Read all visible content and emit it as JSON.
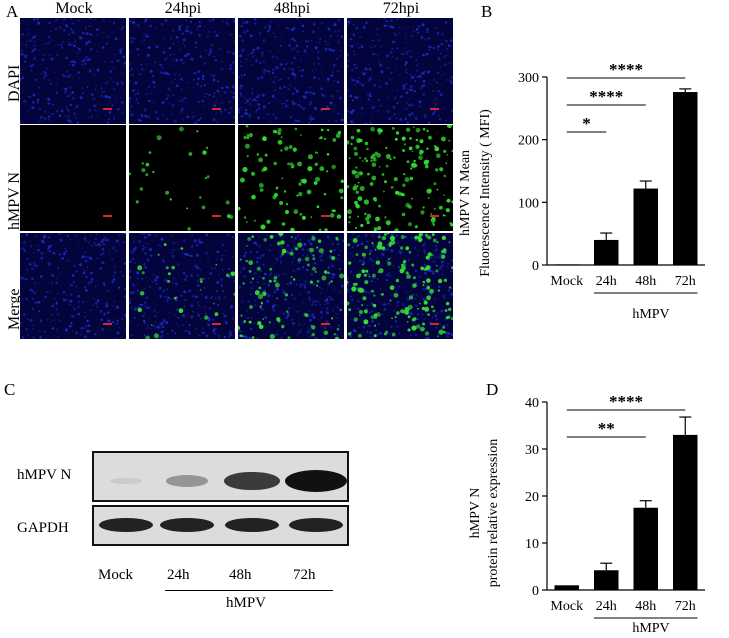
{
  "panels": {
    "a": "A",
    "b": "B",
    "c": "C",
    "d": "D"
  },
  "micrographs": {
    "columns": [
      "Mock",
      "24hpi",
      "48hpi",
      "72hpi"
    ],
    "rows": [
      "DAPI",
      "hMPV N",
      "Merge"
    ],
    "infection_density": [
      0,
      0.15,
      0.55,
      0.95
    ],
    "colors": {
      "nuclei": "#1a2bc8",
      "infected": "#33e035",
      "background": "#04043c",
      "scale_bar": "#d8242c"
    }
  },
  "western_blot": {
    "rows": [
      "hMPV N",
      "GAPDH"
    ],
    "lanes": [
      "Mock",
      "24h",
      "48h",
      "72h"
    ],
    "group_label": "hMPV",
    "band_intensity_hmpv_n": [
      0.05,
      0.35,
      0.8,
      1.0
    ],
    "band_intensity_gapdh": [
      1.0,
      1.0,
      1.0,
      1.0
    ]
  },
  "chart_data": [
    {
      "type": "bar",
      "panel": "B",
      "categories": [
        "Mock",
        "24h",
        "48h",
        "72h"
      ],
      "values": [
        1,
        40,
        122,
        276
      ],
      "errors": [
        0.5,
        11,
        12,
        5
      ],
      "ylabel_line1": "hMPV N Mean",
      "ylabel_line2": "Fluorescence Intensity ( MFI)",
      "group_label": "hMPV",
      "ylim": [
        0,
        300
      ],
      "yticks": [
        "0",
        "100",
        "200",
        "300"
      ],
      "significance": [
        {
          "from": "Mock",
          "to": "24h",
          "label": "*"
        },
        {
          "from": "Mock",
          "to": "48h",
          "label": "****"
        },
        {
          "from": "Mock",
          "to": "72h",
          "label": "****"
        }
      ]
    },
    {
      "type": "bar",
      "panel": "D",
      "categories": [
        "Mock",
        "24h",
        "48h",
        "72h"
      ],
      "values": [
        1,
        4.2,
        17.5,
        33
      ],
      "errors": [
        0.4,
        1.5,
        1.5,
        3.8
      ],
      "ylabel_line1": "hMPV N",
      "ylabel_line2": "protein relative expression",
      "group_label": "hMPV",
      "ylim": [
        0,
        40
      ],
      "yticks": [
        "0",
        "10",
        "20",
        "30",
        "40"
      ],
      "significance": [
        {
          "from": "Mock",
          "to": "48h",
          "label": "**"
        },
        {
          "from": "Mock",
          "to": "72h",
          "label": "****"
        }
      ]
    }
  ]
}
